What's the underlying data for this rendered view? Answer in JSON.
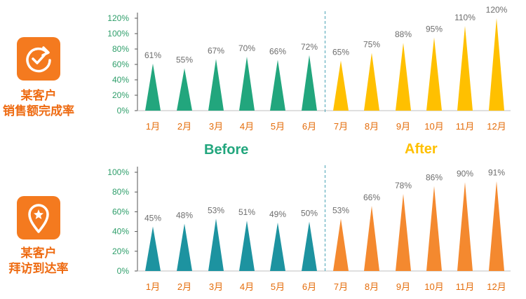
{
  "colors": {
    "before_top": "#22A67D",
    "after_top": "#FFC000",
    "before_bottom": "#1D93A0",
    "after_bottom": "#F4892F",
    "axis_tick": "#2E9E6A",
    "category": "#E46C0A",
    "value_label": "#6D6D6D",
    "divider": "#4AA3B5",
    "brand_orange": "#F47A1F"
  },
  "labels": {
    "phase_before": "Before",
    "phase_after": "After"
  },
  "chart_data": [
    {
      "type": "bar",
      "title": "某客户销售额完成率",
      "title_lines": [
        "某客户",
        "销售额完成率"
      ],
      "icon": "refresh-check-icon",
      "categories": [
        "1月",
        "2月",
        "3月",
        "4月",
        "5月",
        "6月",
        "7月",
        "8月",
        "9月",
        "10月",
        "11月",
        "12月"
      ],
      "values": [
        61,
        55,
        67,
        70,
        66,
        72,
        65,
        75,
        88,
        95,
        110,
        120
      ],
      "value_labels": [
        "61%",
        "55%",
        "67%",
        "70%",
        "66%",
        "72%",
        "65%",
        "75%",
        "88%",
        "95%",
        "110%",
        "120%"
      ],
      "yticks": [
        "0%",
        "20%",
        "40%",
        "60%",
        "80%",
        "100%",
        "120%"
      ],
      "ylim": [
        0,
        120
      ],
      "split_after_index": 5
    },
    {
      "type": "bar",
      "title": "某客户拜访到达率",
      "title_lines": [
        "某客户",
        "拜访到达率"
      ],
      "icon": "location-star-icon",
      "categories": [
        "1月",
        "2月",
        "3月",
        "4月",
        "5月",
        "6月",
        "7月",
        "8月",
        "9月",
        "10月",
        "11月",
        "12月"
      ],
      "values": [
        45,
        48,
        53,
        51,
        49,
        50,
        53,
        66,
        78,
        86,
        90,
        91
      ],
      "value_labels": [
        "45%",
        "48%",
        "53%",
        "51%",
        "49%",
        "50%",
        "53%",
        "66%",
        "78%",
        "86%",
        "90%",
        "91%"
      ],
      "yticks": [
        "0%",
        "20%",
        "40%",
        "60%",
        "80%",
        "100%"
      ],
      "ylim": [
        0,
        100
      ],
      "split_after_index": 5
    }
  ]
}
